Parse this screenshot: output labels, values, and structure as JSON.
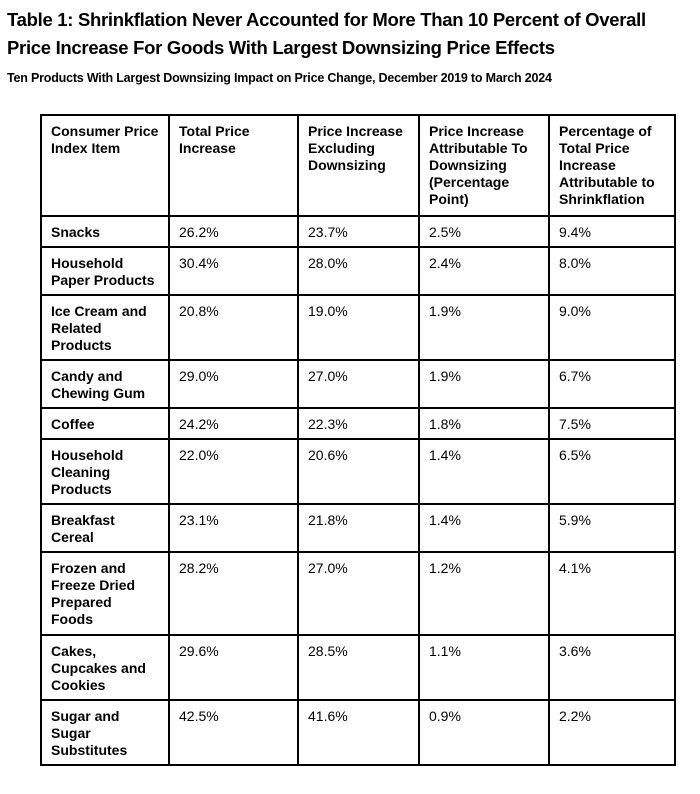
{
  "colors": {
    "background": "#ffffff",
    "text": "#000000",
    "table_border": "#000000"
  },
  "chart_data": {
    "type": "table",
    "title": "Table 1: Shrinkflation Never Accounted for More Than 10 Percent of Overall Price Increase For Goods With Largest Downsizing Price Effects",
    "subtitle": "Ten Products With Largest Downsizing Impact on Price Change, December 2019 to March 2024",
    "columns": [
      "Consumer Price Index Item",
      "Total Price Increase",
      "Price Increase Excluding Downsizing",
      "Price Increase Attributable To Downsizing (Percentage Point)",
      "Percentage of Total Price Increase Attributable to Shrinkflation"
    ],
    "rows": [
      [
        "Snacks",
        "26.2%",
        "23.7%",
        "2.5%",
        "9.4%"
      ],
      [
        "Household Paper Products",
        "30.4%",
        "28.0%",
        "2.4%",
        "8.0%"
      ],
      [
        "Ice Cream and Related Products",
        "20.8%",
        "19.0%",
        "1.9%",
        "9.0%"
      ],
      [
        "Candy and Chewing Gum",
        "29.0%",
        "27.0%",
        "1.9%",
        "6.7%"
      ],
      [
        "Coffee",
        "24.2%",
        "22.3%",
        "1.8%",
        "7.5%"
      ],
      [
        "Household Cleaning Products",
        "22.0%",
        "20.6%",
        "1.4%",
        "6.5%"
      ],
      [
        "Breakfast Cereal",
        "23.1%",
        "21.8%",
        "1.4%",
        "5.9%"
      ],
      [
        "Frozen and Freeze Dried Prepared Foods",
        "28.2%",
        "27.0%",
        "1.2%",
        "4.1%"
      ],
      [
        "Cakes, Cupcakes and Cookies",
        "29.6%",
        "28.5%",
        "1.1%",
        "3.6%"
      ],
      [
        "Sugar and Sugar Substitutes",
        "42.5%",
        "41.6%",
        "0.9%",
        "2.2%"
      ]
    ]
  }
}
